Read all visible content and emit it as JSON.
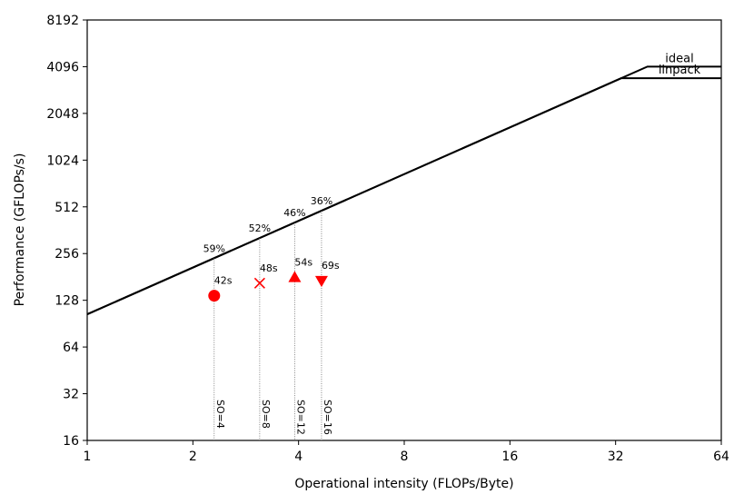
{
  "chart_data": {
    "type": "scatter",
    "title": "",
    "xlabel": "Operational intensity (FLOPs/Byte)",
    "ylabel": "Performance (GFLOPs/s)",
    "x_scale": "log2",
    "y_scale": "log2",
    "xlim": [
      1,
      64
    ],
    "ylim": [
      16,
      8192
    ],
    "x_ticks": [
      1,
      2,
      4,
      8,
      16,
      32,
      64
    ],
    "x_tick_labels": [
      "1",
      "2",
      "4",
      "8",
      "16",
      "32",
      "64"
    ],
    "y_ticks": [
      16,
      32,
      64,
      128,
      256,
      512,
      1024,
      2048,
      4096,
      8192
    ],
    "y_tick_labels": [
      "16",
      "32",
      "64",
      "128",
      "256",
      "512",
      "1024",
      "2048",
      "4096",
      "8192"
    ],
    "grid": false,
    "marker_color": "#ff0000",
    "roofline_color": "#000000",
    "rooflines": [
      {
        "name": "ideal",
        "bandwidth_slope": 104,
        "peak": 4100
      },
      {
        "name": "linpack",
        "bandwidth_slope": 104,
        "peak": 3450
      }
    ],
    "series": [
      {
        "label": "SO=4",
        "marker": "circle",
        "x": 2.3,
        "y": 137,
        "time_label": "42s",
        "roof_pct_label": "59%"
      },
      {
        "label": "SO=8",
        "marker": "x",
        "x": 3.1,
        "y": 165,
        "time_label": "48s",
        "roof_pct_label": "52%"
      },
      {
        "label": "SO=12",
        "marker": "triangle-up",
        "x": 3.9,
        "y": 180,
        "time_label": "54s",
        "roof_pct_label": "46%"
      },
      {
        "label": "SO=16",
        "marker": "triangle-down",
        "x": 4.65,
        "y": 171,
        "time_label": "69s",
        "roof_pct_label": "36%"
      }
    ]
  }
}
